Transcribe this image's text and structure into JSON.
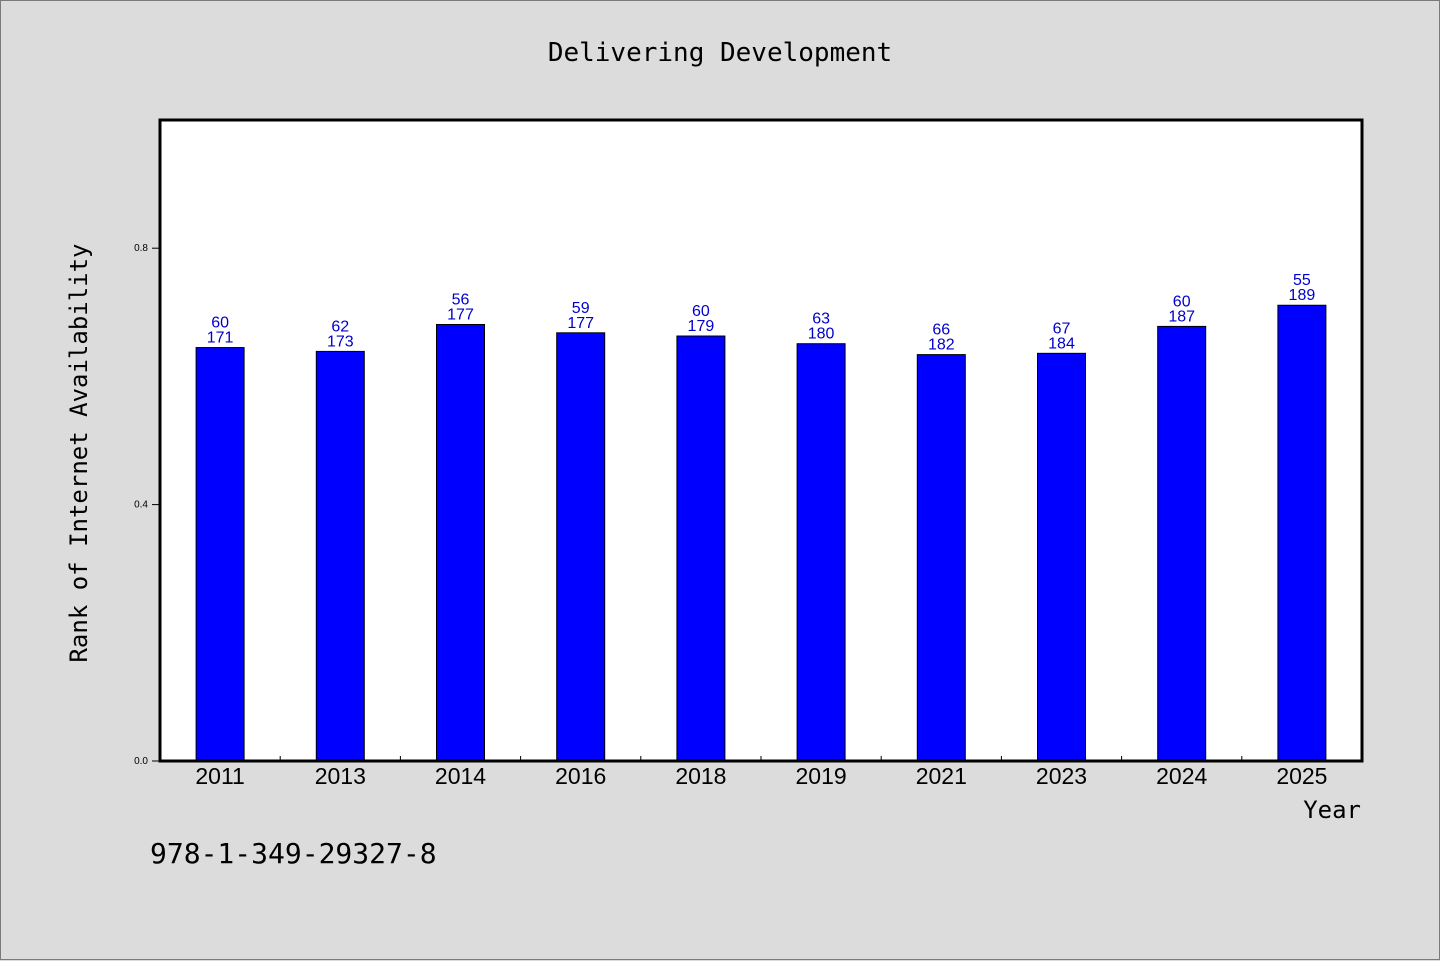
{
  "footer_code": "978-1-349-29327-8",
  "colors": {
    "bar": "#0000ff",
    "label": "#0000cc",
    "background": "#dcdcdc",
    "plot": "#ffffff"
  },
  "chart_data": {
    "type": "bar",
    "title": "Delivering Development",
    "xlabel": "Year",
    "ylabel": "Rank of Internet Availability",
    "categories": [
      "2011",
      "2013",
      "2014",
      "2016",
      "2018",
      "2019",
      "2021",
      "2023",
      "2024",
      "2025"
    ],
    "values": [
      0.645,
      0.639,
      0.681,
      0.668,
      0.663,
      0.651,
      0.634,
      0.636,
      0.678,
      0.711
    ],
    "label_top": [
      "60",
      "62",
      "56",
      "59",
      "60",
      "63",
      "66",
      "67",
      "60",
      "55"
    ],
    "label_bottom": [
      "171",
      "173",
      "177",
      "177",
      "179",
      "180",
      "182",
      "184",
      "187",
      "189"
    ],
    "ylim": [
      0.0,
      1.0
    ],
    "yticks": [
      0.0,
      0.4,
      0.8
    ],
    "ytick_labels": [
      "0.0",
      "0.4",
      "0.8"
    ],
    "grid": false,
    "legend": "none"
  }
}
